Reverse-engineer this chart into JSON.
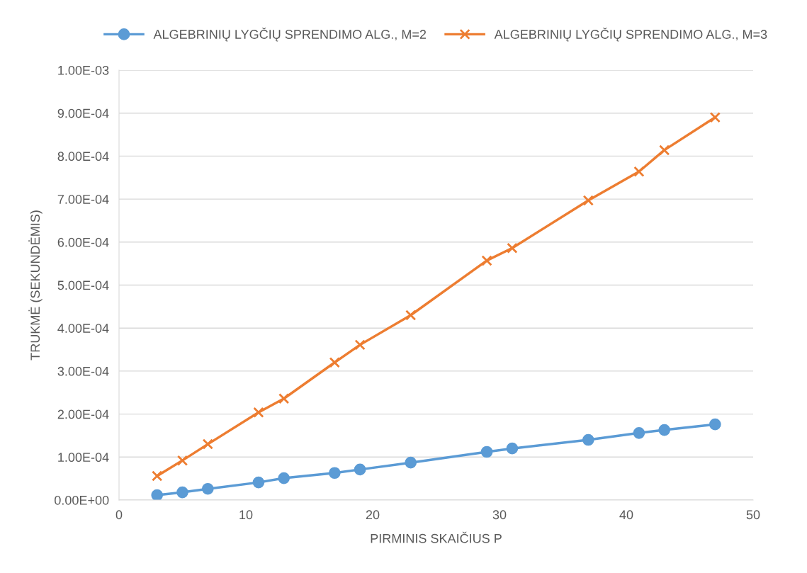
{
  "chart_data": {
    "type": "line",
    "xlabel": "PIRMINIS SKAIČIUS P",
    "ylabel": "TRUKMĖ (SEKUNDĖMIS)",
    "x": [
      3,
      5,
      7,
      11,
      13,
      17,
      19,
      23,
      29,
      31,
      37,
      41,
      43,
      47
    ],
    "series": [
      {
        "name": "ALGEBRINIŲ LYGČIŲ SPRENDIMO ALG., M=2",
        "color": "#5b9bd5",
        "marker": "circle",
        "values": [
          1.15e-05,
          1.8e-05,
          2.6e-05,
          4.1e-05,
          5.1e-05,
          6.3e-05,
          7.1e-05,
          8.7e-05,
          0.000112,
          0.00012,
          0.00014,
          0.000156,
          0.000163,
          0.000176
        ]
      },
      {
        "name": "ALGEBRINIŲ LYGČIŲ SPRENDIMO ALG., M=3",
        "color": "#ed7d31",
        "marker": "cross",
        "values": [
          5.6e-05,
          9.2e-05,
          0.00013,
          0.000204,
          0.000236,
          0.00032,
          0.000361,
          0.00043,
          0.000557,
          0.000586,
          0.000697,
          0.000764,
          0.000814,
          0.00089
        ]
      }
    ],
    "xlim": [
      0,
      50
    ],
    "xticks": [
      0,
      10,
      20,
      30,
      40,
      50
    ],
    "ylim": [
      0,
      0.001
    ],
    "yticks": [
      {
        "value": 0,
        "label": "0.00E+00"
      },
      {
        "value": 0.0001,
        "label": "1.00E-04"
      },
      {
        "value": 0.0002,
        "label": "2.00E-04"
      },
      {
        "value": 0.0003,
        "label": "3.00E-04"
      },
      {
        "value": 0.0004,
        "label": "4.00E-04"
      },
      {
        "value": 0.0005,
        "label": "5.00E-04"
      },
      {
        "value": 0.0006,
        "label": "6.00E-04"
      },
      {
        "value": 0.0007,
        "label": "7.00E-04"
      },
      {
        "value": 0.0008,
        "label": "8.00E-04"
      },
      {
        "value": 0.0009,
        "label": "9.00E-04"
      },
      {
        "value": 0.001,
        "label": "1.00E-03"
      }
    ],
    "grid": "y",
    "legend": "top",
    "line_style": "solid"
  }
}
